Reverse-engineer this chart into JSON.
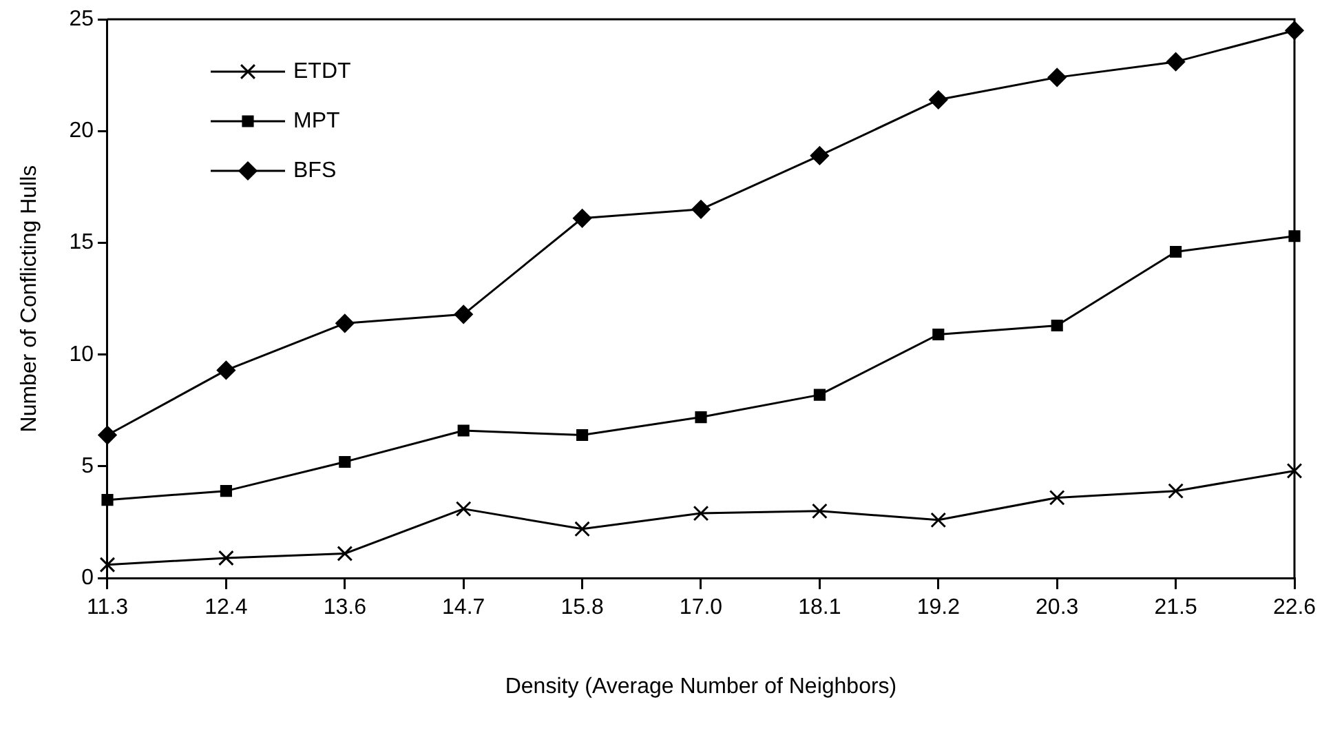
{
  "chart_data": {
    "type": "line",
    "xlabel": "Density (Average Number of Neighbors)",
    "ylabel": "Number of Conflicting Hulls",
    "categories": [
      "11.3",
      "12.4",
      "13.6",
      "14.7",
      "15.8",
      "17.0",
      "18.1",
      "19.2",
      "20.3",
      "21.5",
      "22.6"
    ],
    "ylim": [
      0,
      25
    ],
    "yticks": [
      0,
      5,
      10,
      15,
      20,
      25
    ],
    "grid": false,
    "legend": "top left",
    "line_style": "solid",
    "series": [
      {
        "name": "ETDT",
        "color": "#000000",
        "marker": "cross",
        "values": [
          0.6,
          0.9,
          1.1,
          3.1,
          2.2,
          2.9,
          3.0,
          2.6,
          3.6,
          3.9,
          4.8
        ]
      },
      {
        "name": "MPT",
        "color": "#000000",
        "marker": "square",
        "values": [
          3.5,
          3.9,
          5.2,
          6.6,
          6.4,
          7.2,
          8.2,
          10.9,
          11.3,
          14.6,
          15.3
        ]
      },
      {
        "name": "BFS",
        "color": "#000000",
        "marker": "diamond",
        "values": [
          6.4,
          9.3,
          11.4,
          11.8,
          16.1,
          16.5,
          18.9,
          21.4,
          22.4,
          23.1,
          24.5
        ]
      }
    ]
  }
}
